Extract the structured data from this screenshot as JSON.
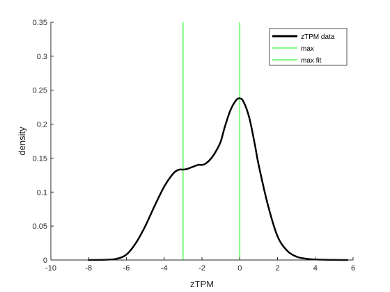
{
  "chart_data": {
    "type": "line",
    "title": "",
    "xlabel": "zTPM",
    "ylabel": "density",
    "xlim": [
      -10,
      6
    ],
    "ylim": [
      0,
      0.35
    ],
    "xticks": [
      -10,
      -8,
      -6,
      -4,
      -2,
      0,
      2,
      4,
      6
    ],
    "xtick_labels": [
      "-10",
      "-8",
      "-6",
      "-4",
      "-2",
      "0",
      "2",
      "4",
      "6"
    ],
    "yticks": [
      0,
      0.05,
      0.1,
      0.15,
      0.2,
      0.25,
      0.3,
      0.35
    ],
    "ytick_labels": [
      "0",
      "0.05",
      "0.1",
      "0.15",
      "0.2",
      "0.25",
      "0.3",
      "0.35"
    ],
    "grid": false,
    "legend_position": "top-right",
    "series": [
      {
        "name": "zTPM data",
        "color": "#000000",
        "x": [
          -8,
          -7,
          -6.5,
          -6,
          -5.5,
          -5,
          -4.5,
          -4,
          -3.5,
          -3.2,
          -3,
          -2.8,
          -2.5,
          -2.2,
          -2,
          -1.8,
          -1.5,
          -1.2,
          -1,
          -0.8,
          -0.5,
          -0.2,
          0,
          0.2,
          0.5,
          0.8,
          1,
          1.5,
          2,
          2.5,
          3,
          3.5,
          4,
          5,
          5.7
        ],
        "y": [
          0.0,
          0.0005,
          0.002,
          0.008,
          0.025,
          0.05,
          0.08,
          0.108,
          0.128,
          0.133,
          0.133,
          0.134,
          0.137,
          0.14,
          0.14,
          0.142,
          0.15,
          0.163,
          0.175,
          0.195,
          0.22,
          0.235,
          0.238,
          0.233,
          0.21,
          0.17,
          0.14,
          0.08,
          0.035,
          0.014,
          0.005,
          0.002,
          0.0008,
          0.0002,
          0.0
        ]
      },
      {
        "name": "max",
        "color": "#00ff00",
        "vline_x": -3
      },
      {
        "name": "max fit",
        "color": "#00ff00",
        "vline_x": 0
      }
    ]
  }
}
